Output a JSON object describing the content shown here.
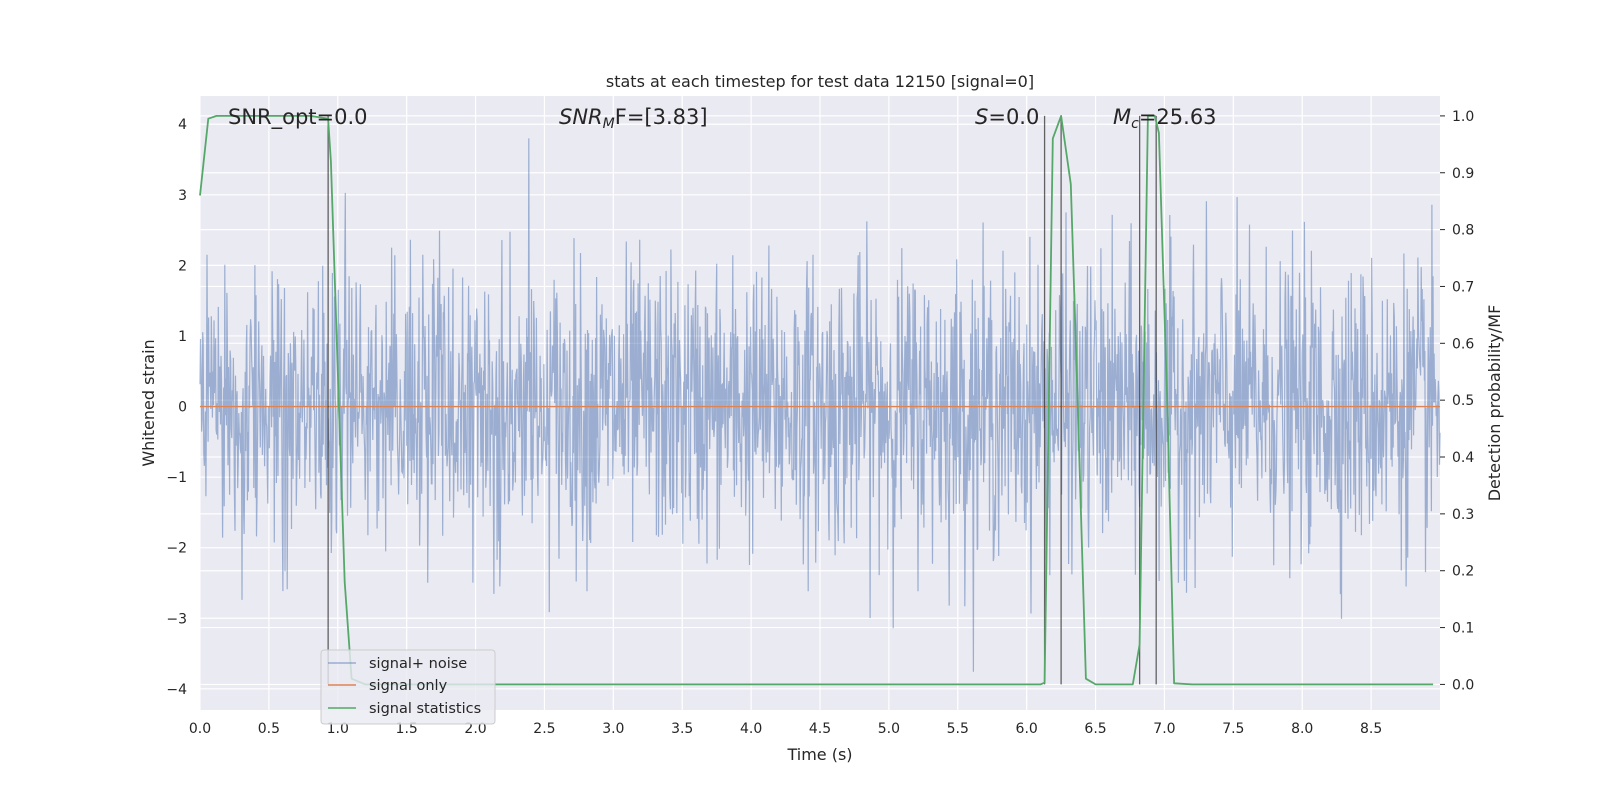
{
  "chart_data": {
    "type": "line",
    "title": "stats at each timestep for test data 12150 [signal=0]",
    "xlabel": "Time (s)",
    "ylabel": "Whitened strain",
    "ylabel_right": "Detection probability/MF",
    "xlim": [
      0.0,
      9.0
    ],
    "ylim": [
      -4.3,
      4.4
    ],
    "ylim_right": [
      -0.045,
      1.035
    ],
    "xticks": [
      "0.0",
      "0.5",
      "1.0",
      "1.5",
      "2.0",
      "2.5",
      "3.0",
      "3.5",
      "4.0",
      "4.5",
      "5.0",
      "5.5",
      "6.0",
      "6.5",
      "7.0",
      "7.5",
      "8.0",
      "8.5"
    ],
    "yticks": [
      "−4",
      "−3",
      "−2",
      "−1",
      "0",
      "1",
      "2",
      "3",
      "4"
    ],
    "yticks_right": [
      "0.0",
      "0.1",
      "0.2",
      "0.3",
      "0.4",
      "0.5",
      "0.6",
      "0.7",
      "0.8",
      "0.9",
      "1.0"
    ],
    "grid": true,
    "legend_position": "lower-left",
    "annotations": {
      "snr_opt": "SNR_opt=0.0",
      "snr_mf_main": "SNR",
      "snr_mf_sub": "M",
      "snr_mf_rest": "F=[3.83]",
      "s_var": "S",
      "s_rest": "=0.0",
      "mc_main": "M",
      "mc_sub": "c",
      "mc_rest": "=25.63"
    },
    "series": [
      {
        "name": "signal+ noise",
        "color": "#4c72b0",
        "opacity": 0.5,
        "note": "whitened noise, approximately Gaussian with unit variance, spanning about -3.9 to 4.0",
        "sample_rate": 256,
        "amplitude_range": [
          -3.9,
          4.0
        ]
      },
      {
        "name": "signal only",
        "color": "#dd8452",
        "values_constant": 0.0
      },
      {
        "name": "signal statistics",
        "color": "#55a868",
        "axis": "right",
        "x": [
          0.0,
          0.06,
          0.12,
          0.2,
          0.3,
          0.4,
          0.5,
          0.6,
          0.7,
          0.8,
          0.93,
          0.95,
          1.0,
          1.05,
          1.1,
          1.2,
          1.5,
          2.0,
          2.5,
          3.0,
          3.5,
          4.0,
          4.5,
          5.0,
          5.5,
          6.0,
          6.1,
          6.13,
          6.19,
          6.25,
          6.32,
          6.37,
          6.43,
          6.5,
          6.6,
          6.7,
          6.77,
          6.82,
          6.88,
          6.93,
          6.96,
          7.02,
          7.07,
          7.2,
          7.5,
          8.0,
          8.5,
          8.95
        ],
        "y": [
          0.86,
          0.995,
          1.0,
          1.0,
          1.0,
          1.0,
          1.0,
          1.0,
          1.0,
          1.0,
          0.995,
          0.92,
          0.55,
          0.18,
          0.01,
          0.0,
          0.0,
          0.0,
          0.0,
          0.0,
          0.0,
          0.0,
          0.0,
          0.0,
          0.0,
          0.0,
          0.0,
          0.003,
          0.96,
          1.0,
          0.88,
          0.5,
          0.01,
          0.0,
          0.0,
          0.0,
          0.0,
          0.07,
          1.0,
          1.0,
          0.97,
          0.5,
          0.002,
          0.0,
          0.0,
          0.0,
          0.0,
          0.0
        ]
      }
    ],
    "vlines_x": [
      0.93,
      6.13,
      6.25,
      6.82,
      6.94
    ],
    "vline_color": "#333333",
    "colors": {
      "plot_bg": "#eaeaf2",
      "grid": "#ffffff",
      "text": "#262626"
    }
  }
}
